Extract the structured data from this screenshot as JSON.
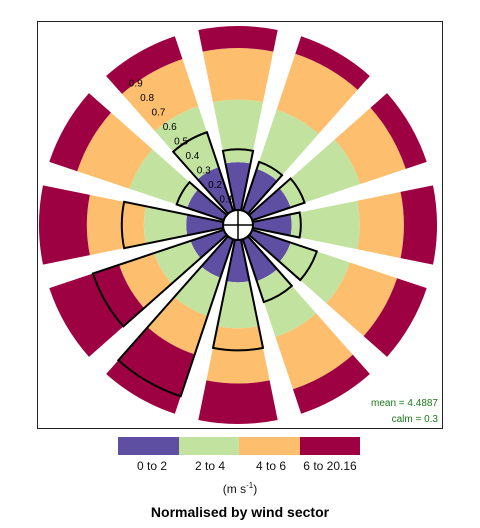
{
  "chart_data": {
    "type": "polar-stacked-bar",
    "title": "Normalised by wind sector",
    "units_main": "(m s",
    "units_sup": "-1",
    "units_close": ")",
    "stats": {
      "mean": "mean = 4.4887",
      "calm": "calm = 0.3"
    },
    "radial_ticks": [
      "0.1",
      "0.2",
      "0.3",
      "0.4",
      "0.5",
      "0.6",
      "0.7",
      "0.8",
      "0.9"
    ],
    "radial_range": [
      0,
      1
    ],
    "bins": [
      {
        "label": "0 to 2",
        "color": "#5e4fa2"
      },
      {
        "label": "2 to 4",
        "color": "#c2e3a0"
      },
      {
        "label": "4 to 6",
        "color": "#fdbe6e"
      },
      {
        "label": "6 to 20.16",
        "color": "#9e0142"
      }
    ],
    "sector_directions_deg": [
      0,
      30,
      60,
      90,
      120,
      150,
      180,
      210,
      240,
      270,
      300,
      330
    ],
    "cumulative": [
      [
        0.26,
        0.6,
        0.88,
        1.0
      ],
      [
        0.24,
        0.58,
        0.9,
        1.0
      ],
      [
        0.22,
        0.62,
        0.88,
        1.0
      ],
      [
        0.21,
        0.58,
        0.82,
        1.0
      ],
      [
        0.22,
        0.56,
        0.83,
        1.0
      ],
      [
        0.24,
        0.56,
        0.86,
        1.0
      ],
      [
        0.23,
        0.48,
        0.78,
        1.0
      ],
      [
        0.22,
        0.44,
        0.66,
        1.0
      ],
      [
        0.19,
        0.4,
        0.6,
        1.0
      ],
      [
        0.2,
        0.43,
        0.74,
        1.0
      ],
      [
        0.21,
        0.54,
        0.84,
        1.0
      ],
      [
        0.25,
        0.6,
        0.87,
        1.0
      ]
    ],
    "frequency_outline": [
      0.33,
      0.28,
      0.3,
      0.26,
      0.37,
      0.36,
      0.6,
      0.9,
      0.75,
      0.55,
      0.27,
      0.45
    ]
  }
}
